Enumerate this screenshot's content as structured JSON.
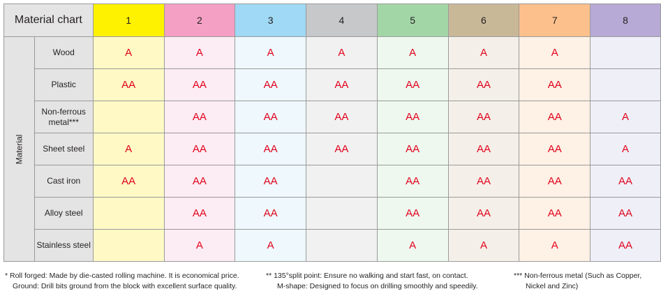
{
  "table": {
    "title": "Material chart",
    "side_label": "Material",
    "columns": [
      {
        "label": "1",
        "header_color": "#fff200",
        "cell_color": "#fef9c5"
      },
      {
        "label": "2",
        "header_color": "#f4a0c4",
        "cell_color": "#fcecf3"
      },
      {
        "label": "3",
        "header_color": "#9fd9f5",
        "cell_color": "#eef8fd"
      },
      {
        "label": "4",
        "header_color": "#c7c8c9",
        "cell_color": "#f1f1f2"
      },
      {
        "label": "5",
        "header_color": "#a3d6a7",
        "cell_color": "#eef8ef"
      },
      {
        "label": "6",
        "header_color": "#c9b898",
        "cell_color": "#f4f0e9"
      },
      {
        "label": "7",
        "header_color": "#fbc08b",
        "cell_color": "#fef1e5"
      },
      {
        "label": "8",
        "header_color": "#b7aad6",
        "cell_color": "#efeff8"
      }
    ],
    "rows": [
      {
        "label": "Wood",
        "values": [
          "A",
          "A",
          "A",
          "A",
          "A",
          "A",
          "A",
          ""
        ]
      },
      {
        "label": "Plastic",
        "values": [
          "AA",
          "AA",
          "AA",
          "AA",
          "AA",
          "AA",
          "AA",
          ""
        ]
      },
      {
        "label": "Non-ferrous metal***",
        "values": [
          "",
          "AA",
          "AA",
          "AA",
          "AA",
          "AA",
          "AA",
          "A"
        ]
      },
      {
        "label": "Sheet steel",
        "values": [
          "A",
          "AA",
          "AA",
          "AA",
          "AA",
          "AA",
          "AA",
          "A"
        ]
      },
      {
        "label": "Cast iron",
        "values": [
          "AA",
          "AA",
          "AA",
          "",
          "AA",
          "AA",
          "AA",
          "AA"
        ]
      },
      {
        "label": "Alloy steel",
        "values": [
          "",
          "AA",
          "AA",
          "",
          "AA",
          "AA",
          "AA",
          "AA"
        ]
      },
      {
        "label": "Stainless steel",
        "values": [
          "",
          "A",
          "A",
          "",
          "A",
          "A",
          "A",
          "AA"
        ]
      }
    ]
  },
  "notes": {
    "note1_line1": "* Roll forged: Made by die-casted rolling machine. It is economical price.",
    "note1_line2": "Ground: Drill bits ground from the block with excellent surface quality.",
    "note2_line1": "** 135°split point: Ensure no walking and start fast, on contact.",
    "note2_line2": "M-shape: Designed to focus on drilling smoothly and speedily.",
    "note3_line1": "*** Non-ferrous metal (Such as Copper,",
    "note3_line2": "Nickel and Zinc)"
  }
}
